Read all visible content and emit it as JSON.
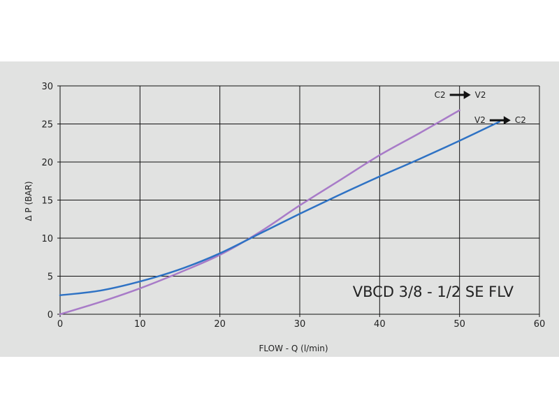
{
  "chart_data": {
    "type": "line",
    "title": "VBCD 3/8 - 1/2 SE FLV",
    "xlabel": "FLOW - Q (l/min)",
    "ylabel": "Δ P (BAR)",
    "xlim": [
      0,
      60
    ],
    "ylim": [
      0,
      30
    ],
    "xticks": [
      0,
      10,
      20,
      30,
      40,
      50,
      60
    ],
    "yticks": [
      0,
      5,
      10,
      15,
      20,
      25,
      30
    ],
    "grid": true,
    "series": [
      {
        "name_from": "C2",
        "name_to": "V2",
        "color": "#a87bc8",
        "x": [
          0,
          5,
          10,
          15,
          20,
          25,
          30,
          35,
          40,
          45,
          50
        ],
        "y": [
          0,
          1.6,
          3.4,
          5.5,
          7.8,
          10.8,
          14.3,
          17.6,
          20.9,
          23.8,
          26.8
        ]
      },
      {
        "name_from": "V2",
        "name_to": "C2",
        "color": "#2e72c4",
        "x": [
          0,
          5,
          10,
          15,
          20,
          25,
          30,
          35,
          40,
          45,
          50,
          55
        ],
        "y": [
          2.5,
          3.1,
          4.3,
          5.9,
          8.0,
          10.6,
          13.2,
          15.7,
          18.1,
          20.4,
          22.8,
          25.3
        ]
      }
    ]
  }
}
